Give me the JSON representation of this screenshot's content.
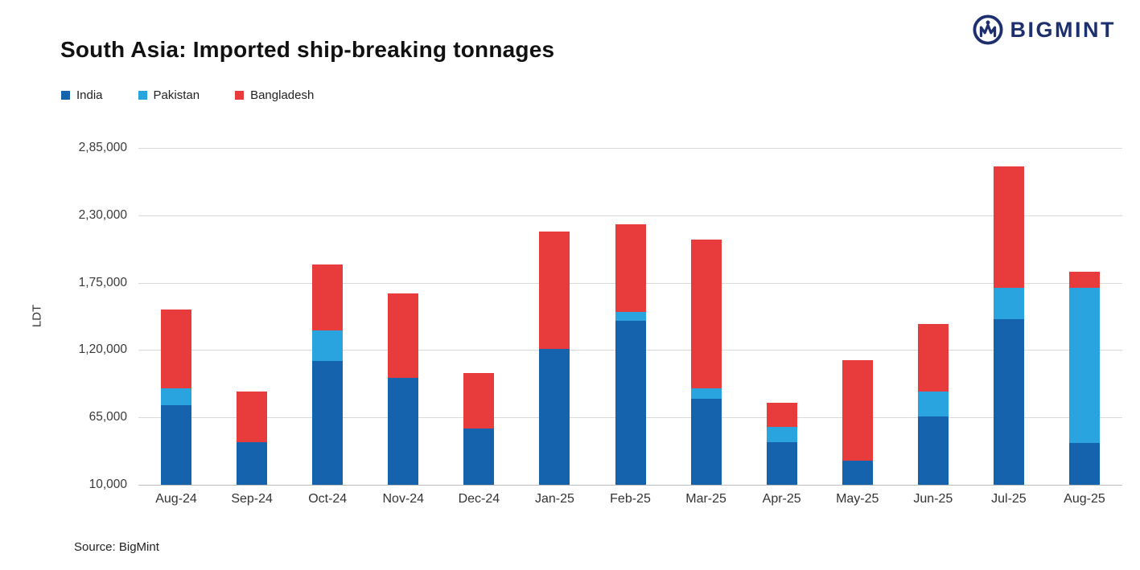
{
  "header": {
    "title": "South Asia: Imported ship-breaking tonnages",
    "brand": "BIGMINT"
  },
  "source": "Source: BigMint",
  "colors": {
    "brand_navy": "#1E2F6E",
    "india": "#1562AD",
    "pakistan": "#29A4DE",
    "bangladesh": "#E83C3C"
  },
  "chart_data": {
    "type": "bar",
    "stacked": true,
    "title": "South Asia: Imported ship-breaking tonnages",
    "xlabel": "",
    "ylabel": "LDT",
    "grid": true,
    "legend_position": "top-left",
    "y_min": 10000,
    "y_max": 285000,
    "y_ticks": [
      {
        "value": 285000,
        "label": "2,85,000"
      },
      {
        "value": 230000,
        "label": "2,30,000"
      },
      {
        "value": 175000,
        "label": "1,75,000"
      },
      {
        "value": 120000,
        "label": "1,20,000"
      },
      {
        "value": 65000,
        "label": "65,000"
      },
      {
        "value": 10000,
        "label": "10,000"
      }
    ],
    "categories": [
      "Aug-24",
      "Sep-24",
      "Oct-24",
      "Nov-24",
      "Dec-24",
      "Jan-25",
      "Feb-25",
      "Mar-25",
      "Apr-25",
      "May-25",
      "Jun-25",
      "Jul-25",
      "Aug-25"
    ],
    "series": [
      {
        "name": "India",
        "color": "#1562AD",
        "values": [
          75000,
          45000,
          111000,
          97000,
          56000,
          121000,
          144000,
          80000,
          45000,
          30000,
          66000,
          145000,
          44000
        ]
      },
      {
        "name": "Pakistan",
        "color": "#29A4DE",
        "values": [
          14000,
          0,
          25000,
          0,
          0,
          0,
          7000,
          9000,
          12000,
          0,
          20000,
          26000,
          127000
        ]
      },
      {
        "name": "Bangladesh",
        "color": "#E83C3C",
        "values": [
          64000,
          41000,
          54000,
          69000,
          45000,
          96000,
          72000,
          121000,
          20000,
          82000,
          55000,
          99000,
          13000
        ]
      }
    ]
  }
}
